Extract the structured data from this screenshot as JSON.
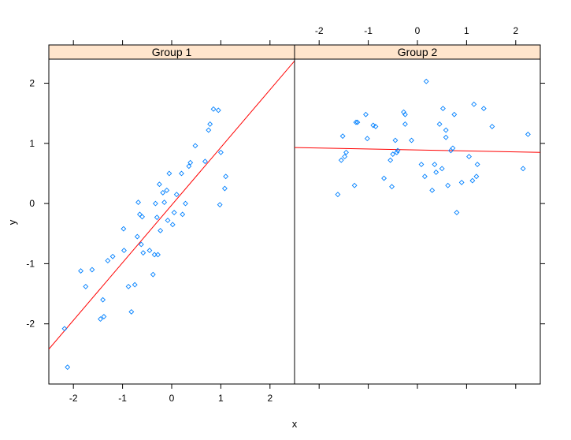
{
  "chart_data": {
    "type": "scatter",
    "xlabel": "x",
    "ylabel": "y",
    "xlim": [
      -2.5,
      2.5
    ],
    "ylim": [
      -3.0,
      2.4
    ],
    "x_ticks": [
      -2,
      -1,
      0,
      1,
      2
    ],
    "y_ticks": [
      -2,
      -1,
      0,
      1,
      2
    ],
    "grid": false,
    "marker_color": "#0080ff",
    "fit_line_color": "#ff0000",
    "strip_color": "#ffe5cc",
    "panels": [
      {
        "name": "Group 1",
        "fit_line": {
          "x": [
            -2.5,
            2.5
          ],
          "y": [
            -2.42,
            2.37
          ]
        },
        "points": [
          [
            -2.18,
            -2.08
          ],
          [
            -2.12,
            -2.72
          ],
          [
            -1.85,
            -1.12
          ],
          [
            -1.75,
            -1.38
          ],
          [
            -1.62,
            -1.1
          ],
          [
            -1.45,
            -1.92
          ],
          [
            -1.4,
            -1.6
          ],
          [
            -1.38,
            -1.88
          ],
          [
            -1.3,
            -0.95
          ],
          [
            -1.2,
            -0.88
          ],
          [
            -0.98,
            -0.42
          ],
          [
            -0.97,
            -0.78
          ],
          [
            -0.88,
            -1.38
          ],
          [
            -0.82,
            -1.8
          ],
          [
            -0.75,
            -1.35
          ],
          [
            -0.7,
            -0.55
          ],
          [
            -0.68,
            0.02
          ],
          [
            -0.65,
            -0.18
          ],
          [
            -0.62,
            -0.68
          ],
          [
            -0.6,
            -0.22
          ],
          [
            -0.58,
            -0.82
          ],
          [
            -0.45,
            -0.78
          ],
          [
            -0.38,
            -1.18
          ],
          [
            -0.35,
            -0.85
          ],
          [
            -0.33,
            0.0
          ],
          [
            -0.3,
            -0.23
          ],
          [
            -0.28,
            -0.85
          ],
          [
            -0.25,
            0.32
          ],
          [
            -0.23,
            -0.45
          ],
          [
            -0.18,
            0.18
          ],
          [
            -0.15,
            0.02
          ],
          [
            -0.1,
            0.22
          ],
          [
            -0.08,
            -0.28
          ],
          [
            -0.05,
            0.5
          ],
          [
            0.02,
            -0.35
          ],
          [
            0.05,
            -0.15
          ],
          [
            0.1,
            0.15
          ],
          [
            0.2,
            0.5
          ],
          [
            0.22,
            -0.18
          ],
          [
            0.28,
            0.0
          ],
          [
            0.35,
            0.62
          ],
          [
            0.38,
            0.68
          ],
          [
            0.48,
            0.96
          ],
          [
            0.68,
            0.7
          ],
          [
            0.75,
            1.22
          ],
          [
            0.78,
            1.32
          ],
          [
            0.85,
            1.57
          ],
          [
            0.95,
            1.55
          ],
          [
            0.98,
            -0.02
          ],
          [
            1.0,
            0.85
          ],
          [
            1.08,
            0.25
          ],
          [
            1.1,
            0.45
          ]
        ]
      },
      {
        "name": "Group 2",
        "fit_line": {
          "x": [
            -2.5,
            2.5
          ],
          "y": [
            0.93,
            0.85
          ]
        },
        "points": [
          [
            -1.62,
            0.15
          ],
          [
            -1.55,
            0.72
          ],
          [
            -1.52,
            1.12
          ],
          [
            -1.48,
            0.78
          ],
          [
            -1.45,
            0.85
          ],
          [
            -1.28,
            0.3
          ],
          [
            -1.25,
            1.35
          ],
          [
            -1.22,
            1.35
          ],
          [
            -1.05,
            1.48
          ],
          [
            -1.02,
            1.08
          ],
          [
            -0.9,
            1.3
          ],
          [
            -0.85,
            1.28
          ],
          [
            -0.68,
            0.42
          ],
          [
            -0.55,
            0.72
          ],
          [
            -0.52,
            0.28
          ],
          [
            -0.5,
            0.82
          ],
          [
            -0.45,
            1.05
          ],
          [
            -0.42,
            0.85
          ],
          [
            -0.4,
            0.88
          ],
          [
            -0.28,
            1.52
          ],
          [
            -0.25,
            1.48
          ],
          [
            -0.25,
            1.32
          ],
          [
            -0.12,
            1.05
          ],
          [
            0.08,
            0.65
          ],
          [
            0.15,
            0.45
          ],
          [
            0.18,
            2.03
          ],
          [
            0.3,
            0.22
          ],
          [
            0.35,
            0.65
          ],
          [
            0.38,
            0.52
          ],
          [
            0.45,
            1.32
          ],
          [
            0.5,
            0.58
          ],
          [
            0.52,
            1.58
          ],
          [
            0.58,
            1.22
          ],
          [
            0.58,
            1.1
          ],
          [
            0.62,
            0.3
          ],
          [
            0.68,
            0.88
          ],
          [
            0.72,
            0.92
          ],
          [
            0.75,
            1.48
          ],
          [
            0.8,
            -0.15
          ],
          [
            0.9,
            0.35
          ],
          [
            1.05,
            0.78
          ],
          [
            1.12,
            0.38
          ],
          [
            1.15,
            1.65
          ],
          [
            1.2,
            0.45
          ],
          [
            1.22,
            0.65
          ],
          [
            1.35,
            1.58
          ],
          [
            1.52,
            1.28
          ],
          [
            2.15,
            0.58
          ],
          [
            2.25,
            1.15
          ]
        ]
      }
    ]
  }
}
